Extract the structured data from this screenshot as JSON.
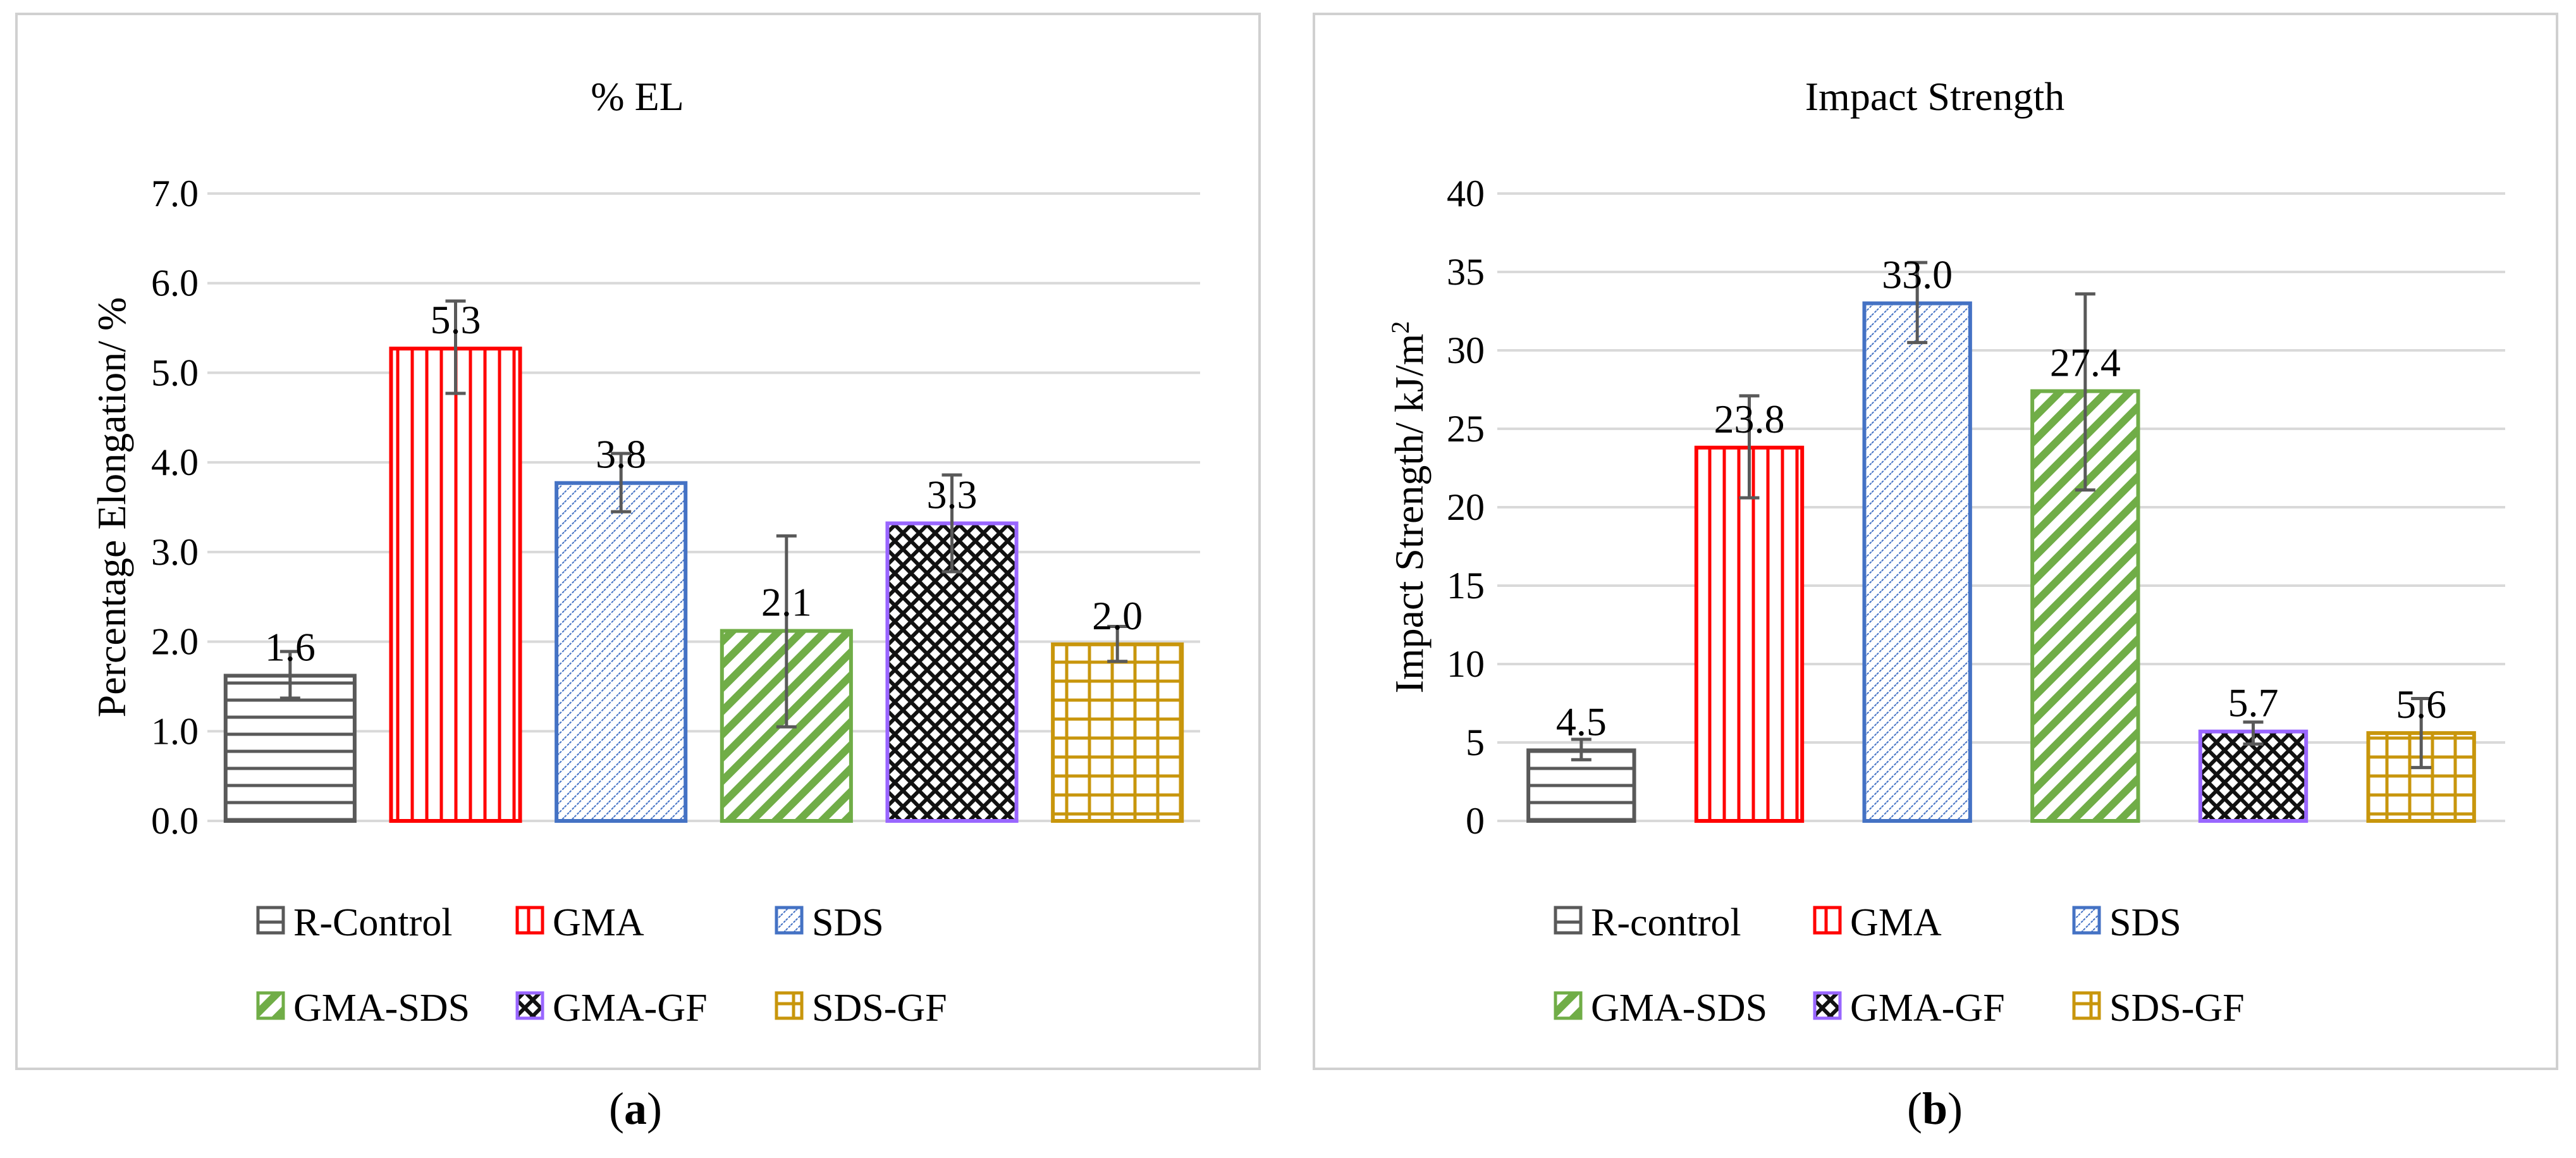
{
  "chart_data": [
    {
      "type": "bar",
      "title": "% EL",
      "ylabel": "Percentage Elongation/ %",
      "xlabel": "",
      "ylim": [
        0,
        7
      ],
      "yticks": [
        "0.0",
        "1.0",
        "2.0",
        "3.0",
        "4.0",
        "5.0",
        "6.0",
        "7.0"
      ],
      "ytick_values": [
        0,
        1,
        2,
        3,
        4,
        5,
        6,
        7
      ],
      "grid": true,
      "legend_position": "bottom",
      "categories": [
        "R-Control",
        "GMA",
        "SDS",
        "GMA-SDS",
        "GMA-GF",
        "SDS-GF"
      ],
      "values": [
        1.62,
        5.27,
        3.77,
        2.12,
        3.32,
        1.97
      ],
      "value_labels": [
        "1.6",
        "5.3",
        "3.8",
        "2.1",
        "3.3",
        "2.0"
      ],
      "error_low": [
        1.37,
        4.77,
        3.45,
        1.05,
        2.78,
        1.78
      ],
      "error_high": [
        1.89,
        5.8,
        4.1,
        3.18,
        3.86,
        2.17
      ],
      "legend": [
        "R-Control",
        "GMA",
        "SDS",
        "GMA-SDS",
        "GMA-GF",
        "SDS-GF"
      ]
    },
    {
      "type": "bar",
      "title": "Impact Strength",
      "ylabel": "Impact Strength/ kJ/m",
      "ylabel_sup": "2",
      "xlabel": "",
      "ylim": [
        0,
        40
      ],
      "yticks": [
        "0",
        "5",
        "10",
        "15",
        "20",
        "25",
        "30",
        "35",
        "40"
      ],
      "ytick_values": [
        0,
        5,
        10,
        15,
        20,
        25,
        30,
        35,
        40
      ],
      "grid": true,
      "legend_position": "bottom",
      "categories": [
        "R-control",
        "GMA",
        "SDS",
        "GMA-SDS",
        "GMA-GF",
        "SDS-GF"
      ],
      "values": [
        4.5,
        23.8,
        33.0,
        27.4,
        5.7,
        5.6
      ],
      "value_labels": [
        "4.5",
        "23.8",
        "33.0",
        "27.4",
        "5.7",
        "5.6"
      ],
      "error_low": [
        3.9,
        20.6,
        30.5,
        21.1,
        4.9,
        3.4
      ],
      "error_high": [
        5.2,
        27.1,
        35.6,
        33.6,
        6.3,
        7.8
      ],
      "legend": [
        "R-control",
        "GMA",
        "SDS",
        "GMA-SDS",
        "GMA-GF",
        "SDS-GF"
      ]
    }
  ],
  "series_colors": [
    "#595959",
    "#ff0000",
    "#4472c4",
    "#70ad47",
    "#9966ff",
    "#c8960c"
  ],
  "patterns": [
    "horizontal-lines",
    "vertical-lines",
    "fine-diagonal-dots",
    "wide-diagonal-stripes",
    "checker-diamond",
    "grid"
  ],
  "captions": [
    {
      "open": "(",
      "letter": "a",
      "close": ")"
    },
    {
      "open": "(",
      "letter": "b",
      "close": ")"
    }
  ]
}
